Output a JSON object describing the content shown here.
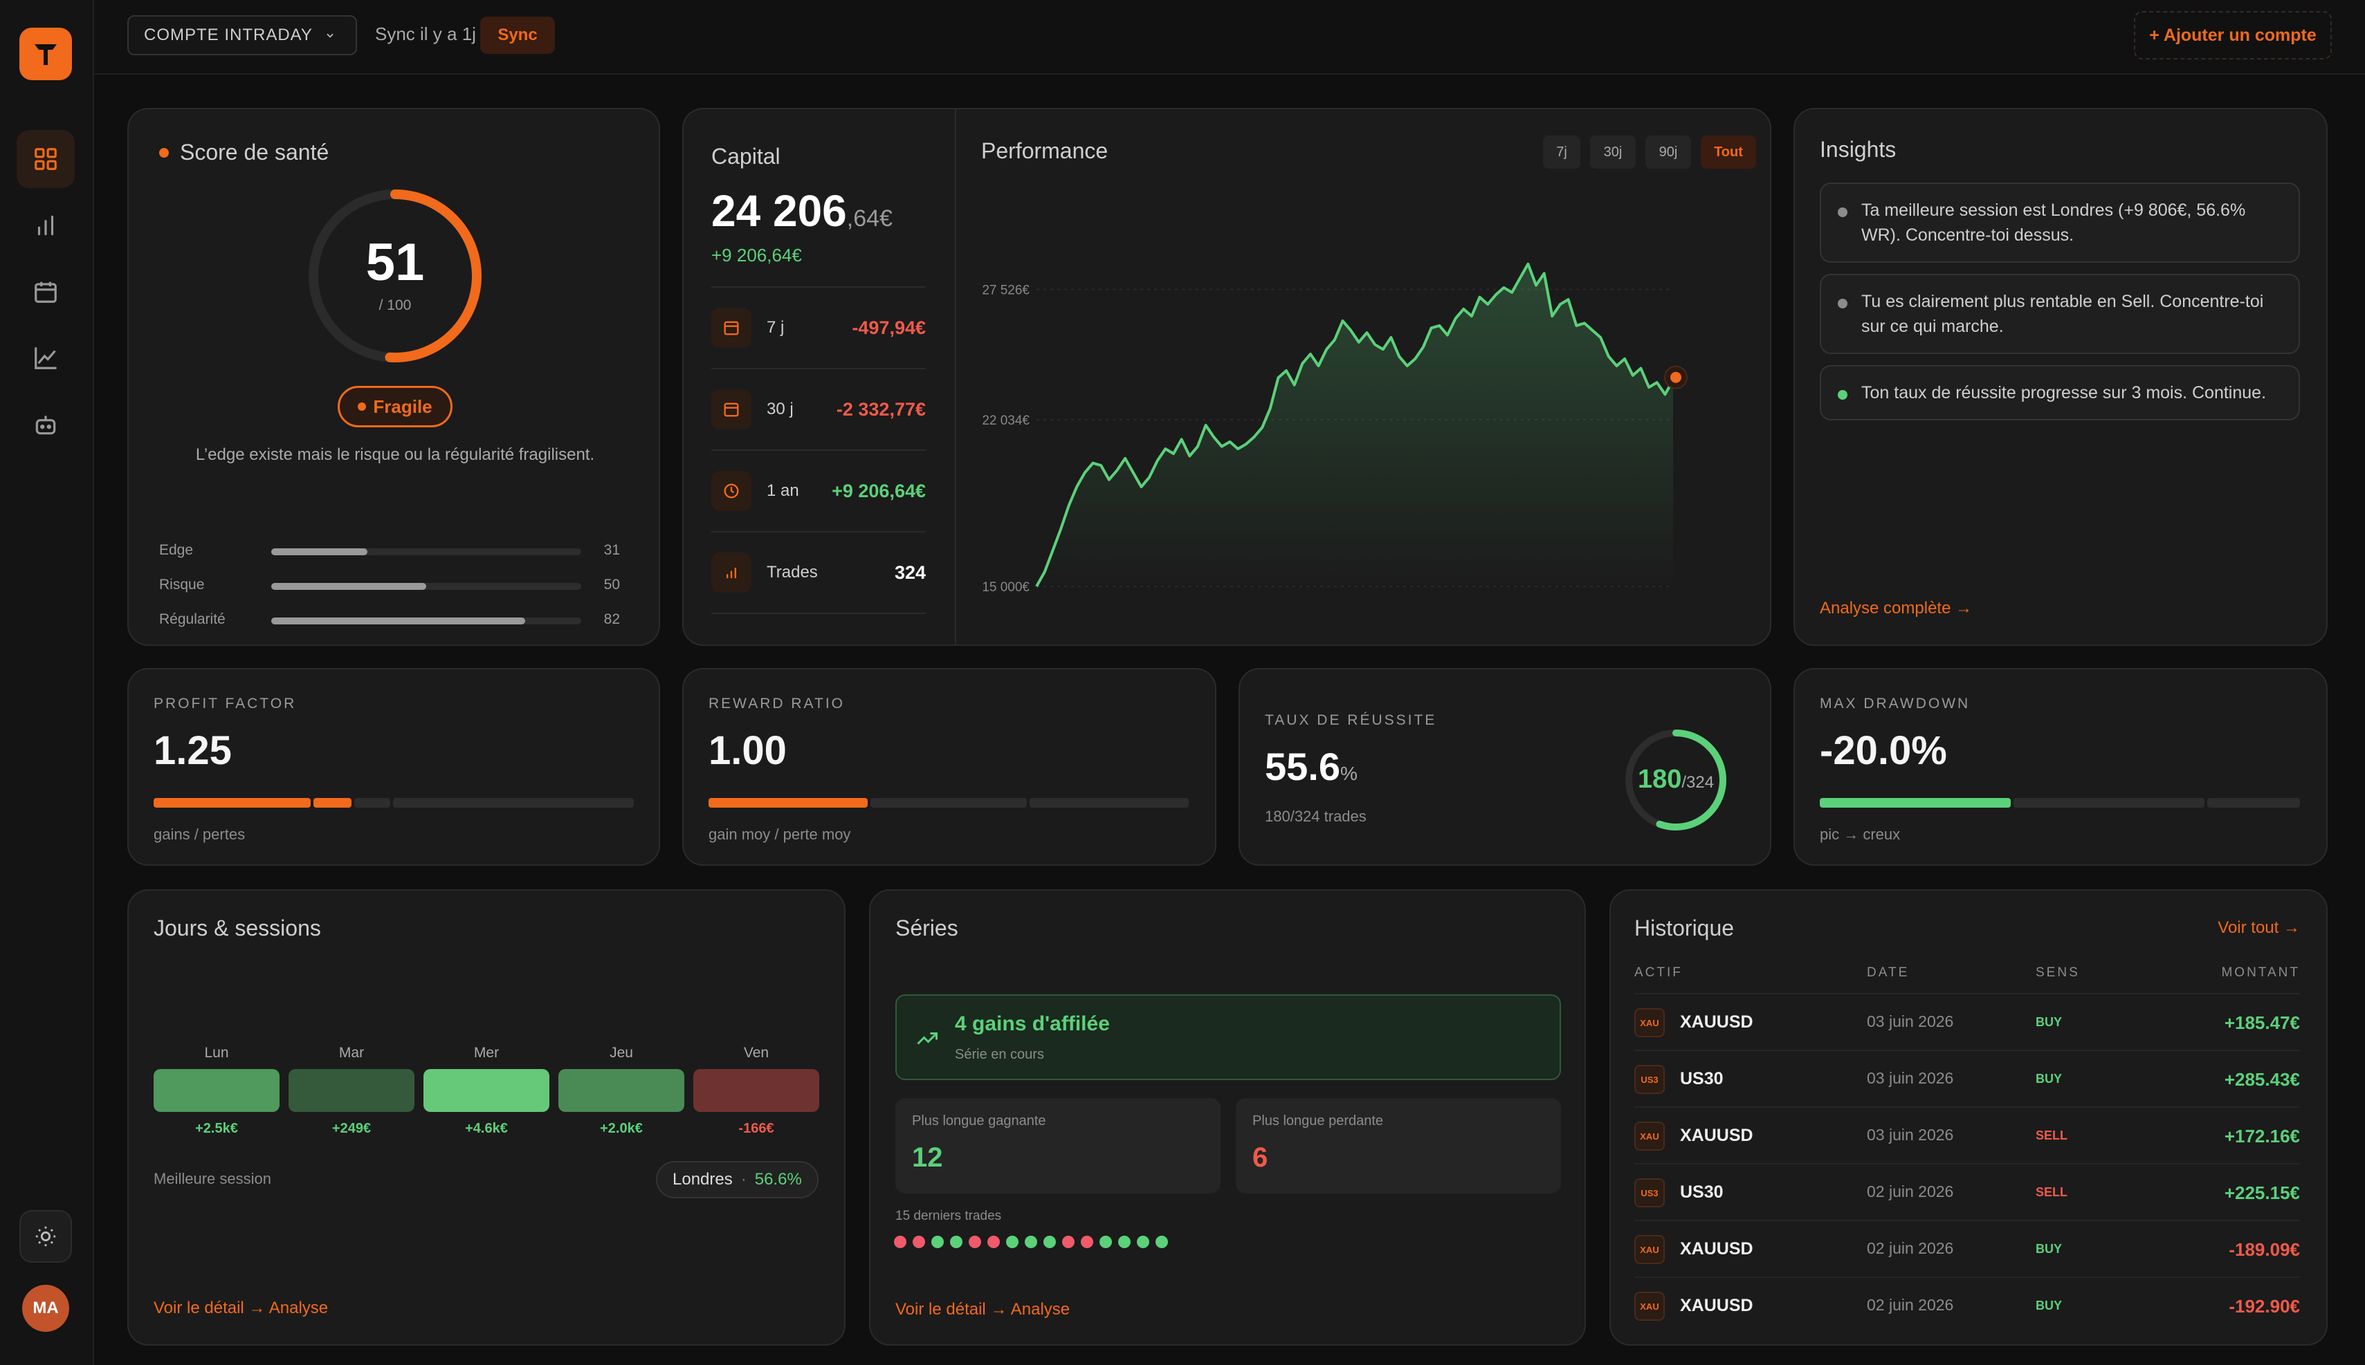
{
  "sidebar": {
    "nav": [
      {
        "icon": "dashboard-grid-icon",
        "active": true
      },
      {
        "icon": "bar-chart-icon",
        "active": false
      },
      {
        "icon": "calendar-icon",
        "active": false
      },
      {
        "icon": "line-chart-icon",
        "active": false
      },
      {
        "icon": "robot-icon",
        "active": false
      }
    ],
    "avatar": "MA"
  },
  "topbar": {
    "account": "COMPTE INTRADAY",
    "sync_text": "Sync il y a 1j",
    "sync_btn": "Sync",
    "add_account": "+ Ajouter un compte"
  },
  "health": {
    "title": "Score de santé",
    "score": "51",
    "max": "/ 100",
    "score_fraction": 0.51,
    "badge": "Fragile",
    "desc": "L’edge existe mais le risque ou la régularité fragilisent.",
    "metrics": [
      {
        "label": "Edge",
        "value": "31",
        "pct": 31
      },
      {
        "label": "Risque",
        "value": "50",
        "pct": 50
      },
      {
        "label": "Régularité",
        "value": "82",
        "pct": 82
      }
    ]
  },
  "capital": {
    "title": "Capital",
    "amount_main": "24 206",
    "amount_dec": ",64€",
    "change": "+9 206,64€",
    "periods": [
      {
        "icon": "calendar-icon",
        "label": "7 j",
        "value": "-497,94€",
        "tone": "red"
      },
      {
        "icon": "calendar-icon",
        "label": "30 j",
        "value": "-2 332,77€",
        "tone": "red"
      },
      {
        "icon": "clock-icon",
        "label": "1 an",
        "value": "+9 206,64€",
        "tone": "green"
      },
      {
        "icon": "bar-chart-icon",
        "label": "Trades",
        "value": "324",
        "tone": "white"
      }
    ]
  },
  "performance": {
    "title": "Performance",
    "ranges": [
      "7j",
      "30j",
      "90j",
      "Tout"
    ],
    "active_range": "Tout"
  },
  "chart_data": {
    "type": "line",
    "title": "Performance",
    "y_ticks": [
      "27 526€",
      "22 034€",
      "15 000€"
    ],
    "y_tick_values": [
      27526,
      22034,
      15000
    ],
    "ylim": [
      15000,
      29000
    ],
    "color": "#5bd17a",
    "x": [
      0,
      1,
      2,
      3,
      4,
      5,
      6,
      7,
      8,
      9,
      10,
      11,
      12,
      13,
      14,
      15,
      16,
      17,
      18,
      19,
      20,
      21,
      22,
      23,
      24,
      25,
      26,
      27,
      28,
      29,
      30,
      31,
      32,
      33,
      34,
      35,
      36,
      37,
      38,
      39,
      40,
      41,
      42,
      43,
      44,
      45,
      46,
      47,
      48,
      49,
      50,
      51,
      52,
      53,
      54,
      55,
      56,
      57,
      58,
      59,
      60,
      61,
      62,
      63,
      64,
      65,
      66,
      67,
      68,
      69,
      70,
      71,
      72,
      73,
      74,
      75,
      76,
      77,
      78,
      79
    ],
    "values": [
      15000,
      15600,
      16500,
      17400,
      18400,
      19200,
      19800,
      20200,
      20100,
      19500,
      19900,
      20400,
      19800,
      19200,
      19600,
      20300,
      20800,
      20600,
      21200,
      20500,
      20900,
      21800,
      21300,
      20900,
      21100,
      20800,
      21000,
      21300,
      21700,
      22500,
      23800,
      24100,
      23500,
      24400,
      24800,
      24300,
      25000,
      25400,
      26200,
      25800,
      25300,
      25700,
      25200,
      25000,
      25500,
      24700,
      24300,
      24600,
      25100,
      25900,
      26000,
      25600,
      26300,
      26700,
      26400,
      27200,
      26900,
      27300,
      27600,
      27400,
      28000,
      28600,
      27700,
      28200,
      26400,
      26900,
      27100,
      26000,
      26100,
      25800,
      25500,
      24700,
      24300,
      24600,
      23900,
      24200,
      23400,
      23600,
      23100,
      23700
    ],
    "last_point_marker": true
  },
  "insights": {
    "title": "Insights",
    "items": [
      {
        "text": "Ta meilleure session est Londres (+9 806€, 56.6% WR). Concentre-toi dessus.",
        "color": "#8c8c8c"
      },
      {
        "text": "Tu es clairement plus rentable en Sell. Concentre-toi sur ce qui marche.",
        "color": "#8c8c8c"
      },
      {
        "text": "Ton taux de réussite progresse sur 3 mois. Continue.",
        "color": "#5bd17a"
      }
    ],
    "link": "Analyse complète →"
  },
  "kpis": {
    "profit_factor": {
      "label": "PROFIT FACTOR",
      "value": "1.25",
      "sub": "gains / pertes",
      "fill": 0.42
    },
    "reward_ratio": {
      "label": "REWARD RATIO",
      "value": "1.00",
      "sub": "gain moy / perte moy",
      "fill": 0.33
    },
    "win_rate": {
      "label": "TAUX DE RÉUSSITE",
      "value": "55.6",
      "unit": "%",
      "sub": "180/324 trades",
      "ring_num": "180",
      "ring_den": "/324",
      "ring_fraction": 0.556
    },
    "max_drawdown": {
      "label": "MAX DRAWDOWN",
      "value": "-20.0%",
      "sub": "pic → creux",
      "fill": 0.4
    }
  },
  "days": {
    "title": "Jours & sessions",
    "items": [
      {
        "day": "Lun",
        "value": "+2.5k€",
        "color": "#4f9a5c"
      },
      {
        "day": "Mar",
        "value": "+249€",
        "color": "#345a3b"
      },
      {
        "day": "Mer",
        "value": "+4.6k€",
        "color": "#66c879"
      },
      {
        "day": "Jeu",
        "value": "+2.0k€",
        "color": "#4a8b55"
      },
      {
        "day": "Ven",
        "value": "-166€",
        "color": "#6e3330"
      }
    ],
    "best_label": "Meilleure session",
    "best_name": "Londres",
    "best_sep": "·",
    "best_pct": "56.6%",
    "link": "Voir le détail → Analyse"
  },
  "series": {
    "title": "Séries",
    "streak": "4 gains d'affilée",
    "streak_sub": "Série en cours",
    "longest_win_label": "Plus longue gagnante",
    "longest_win": "12",
    "longest_loss_label": "Plus longue perdante",
    "longest_loss": "6",
    "last_label": "15 derniers trades",
    "last_trades": [
      "L",
      "L",
      "W",
      "W",
      "L",
      "L",
      "W",
      "W",
      "W",
      "L",
      "L",
      "W",
      "W",
      "W",
      "W"
    ],
    "link": "Voir le détail → Analyse"
  },
  "history": {
    "title": "Historique",
    "link": "Voir tout →",
    "headers": [
      "ACTIF",
      "DATE",
      "SENS",
      "MONTANT"
    ],
    "rows": [
      {
        "badge": "XAU",
        "asset": "XAUUSD",
        "date": "03 juin 2026",
        "side": "BUY",
        "amount": "+185.47€"
      },
      {
        "badge": "US3",
        "asset": "US30",
        "date": "03 juin 2026",
        "side": "BUY",
        "amount": "+285.43€"
      },
      {
        "badge": "XAU",
        "asset": "XAUUSD",
        "date": "03 juin 2026",
        "side": "SELL",
        "amount": "+172.16€"
      },
      {
        "badge": "US3",
        "asset": "US30",
        "date": "02 juin 2026",
        "side": "SELL",
        "amount": "+225.15€"
      },
      {
        "badge": "XAU",
        "asset": "XAUUSD",
        "date": "02 juin 2026",
        "side": "BUY",
        "amount": "-189.09€"
      },
      {
        "badge": "XAU",
        "asset": "XAUUSD",
        "date": "02 juin 2026",
        "side": "BUY",
        "amount": "-192.90€"
      }
    ]
  }
}
